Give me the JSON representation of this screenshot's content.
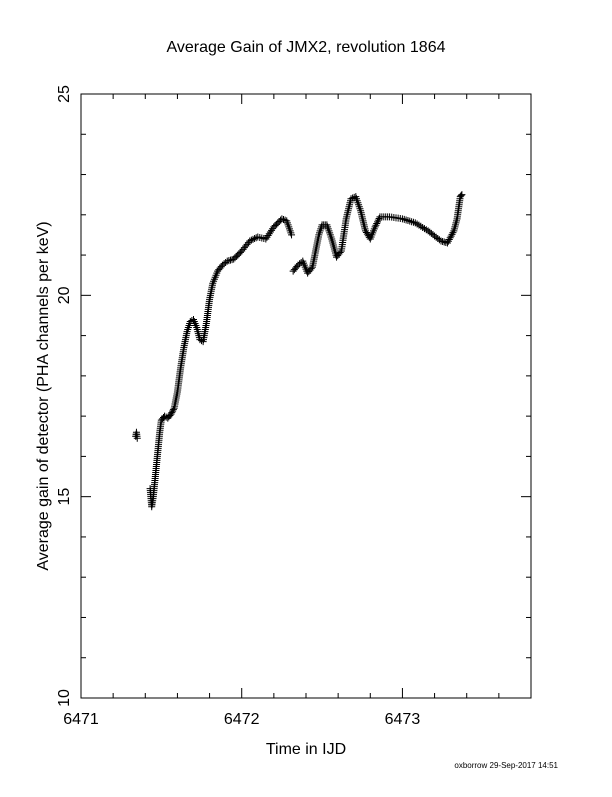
{
  "page": {
    "title": "Average Gain of JMX2, revolution 1864",
    "footer": "oxborrow 29-Sep-2017 14:51"
  },
  "chart_data": {
    "type": "scatter",
    "title": "Average Gain of JMX2, revolution 1864",
    "xlabel": "Time in IJD",
    "ylabel": "Average gain of detector (PHA channels per keV)",
    "xlim": [
      6471,
      6473.8
    ],
    "ylim": [
      10,
      25
    ],
    "x_ticks": [
      6471,
      6472,
      6473
    ],
    "x_tick_labels": [
      "6471",
      "6472",
      "6473"
    ],
    "y_ticks": [
      10,
      15,
      20,
      25
    ],
    "y_tick_labels": [
      "10",
      "15",
      "20",
      "25"
    ],
    "grid": false,
    "legend": "none",
    "marker": "+",
    "color": "#000000",
    "segments": [
      {
        "points": [
          [
            6471.34,
            16.5
          ],
          [
            6471.345,
            16.6
          ],
          [
            6471.35,
            16.45
          ]
        ]
      },
      {
        "points": [
          [
            6471.43,
            15.2
          ],
          [
            6471.44,
            14.75
          ],
          [
            6471.45,
            15.0
          ],
          [
            6471.46,
            15.4
          ],
          [
            6471.47,
            15.8
          ],
          [
            6471.48,
            16.2
          ],
          [
            6471.49,
            16.6
          ],
          [
            6471.5,
            16.9
          ],
          [
            6471.52,
            17.0
          ],
          [
            6471.54,
            16.95
          ],
          [
            6471.56,
            17.05
          ],
          [
            6471.58,
            17.2
          ],
          [
            6471.6,
            17.6
          ],
          [
            6471.62,
            18.2
          ],
          [
            6471.64,
            18.7
          ],
          [
            6471.66,
            19.1
          ],
          [
            6471.68,
            19.35
          ],
          [
            6471.7,
            19.4
          ],
          [
            6471.72,
            19.2
          ],
          [
            6471.74,
            18.9
          ],
          [
            6471.76,
            18.85
          ],
          [
            6471.78,
            19.3
          ],
          [
            6471.8,
            19.9
          ],
          [
            6471.82,
            20.3
          ],
          [
            6471.85,
            20.6
          ],
          [
            6471.88,
            20.75
          ],
          [
            6471.91,
            20.85
          ],
          [
            6471.95,
            20.9
          ],
          [
            6472.0,
            21.1
          ],
          [
            6472.05,
            21.35
          ],
          [
            6472.1,
            21.45
          ],
          [
            6472.15,
            21.4
          ],
          [
            6472.2,
            21.7
          ],
          [
            6472.25,
            21.9
          ],
          [
            6472.28,
            21.85
          ],
          [
            6472.31,
            21.5
          ]
        ]
      },
      {
        "points": [
          [
            6472.32,
            20.6
          ],
          [
            6472.35,
            20.75
          ],
          [
            6472.38,
            20.85
          ],
          [
            6472.41,
            20.55
          ],
          [
            6472.44,
            20.7
          ],
          [
            6472.46,
            21.1
          ],
          [
            6472.48,
            21.5
          ],
          [
            6472.5,
            21.75
          ],
          [
            6472.53,
            21.75
          ],
          [
            6472.56,
            21.4
          ],
          [
            6472.59,
            20.95
          ],
          [
            6472.62,
            21.1
          ],
          [
            6472.65,
            21.9
          ],
          [
            6472.68,
            22.4
          ],
          [
            6472.71,
            22.45
          ],
          [
            6472.74,
            22.1
          ],
          [
            6472.77,
            21.6
          ],
          [
            6472.8,
            21.4
          ],
          [
            6472.83,
            21.7
          ],
          [
            6472.86,
            21.95
          ],
          [
            6472.92,
            21.95
          ],
          [
            6473.0,
            21.9
          ],
          [
            6473.08,
            21.8
          ],
          [
            6473.16,
            21.6
          ],
          [
            6473.24,
            21.35
          ],
          [
            6473.28,
            21.3
          ],
          [
            6473.32,
            21.6
          ],
          [
            6473.34,
            21.9
          ],
          [
            6473.36,
            22.45
          ],
          [
            6473.37,
            22.5
          ]
        ]
      }
    ]
  }
}
